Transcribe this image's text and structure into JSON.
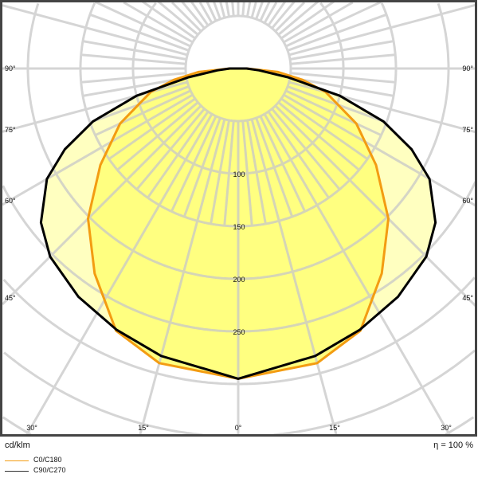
{
  "chart_data": {
    "type": "polar",
    "unit_label": "cd/klm",
    "efficiency_label": "η = 100 %",
    "radial_ticks": [
      100,
      150,
      200,
      250
    ],
    "radial_grid_step": 50,
    "angle_labels_side": [
      "90°",
      "75°",
      "60°",
      "45°"
    ],
    "angle_labels_bottom": [
      "30°",
      "15°",
      "0°",
      "15°",
      "30°"
    ],
    "grid": true,
    "legend_placement": "bottom-left",
    "series": [
      {
        "name": "C0/C180",
        "color": "#f39c12",
        "fill": "#ffff80",
        "angles": [
          0,
          15,
          25,
          35,
          45,
          55,
          65,
          75,
          80,
          85,
          90
        ],
        "values": [
          295,
          290,
          275,
          238,
          202,
          160,
          124,
          86,
          62,
          38,
          8
        ]
      },
      {
        "name": "C90/C270",
        "color": "#000000",
        "fill": "#ffffc0",
        "angles": [
          0,
          15,
          25,
          35,
          45,
          52,
          60,
          65,
          70,
          75,
          80,
          85,
          90
        ],
        "values": [
          295,
          283,
          274,
          265,
          253,
          238,
          210,
          182,
          147,
          100,
          48,
          20,
          8
        ]
      }
    ]
  }
}
